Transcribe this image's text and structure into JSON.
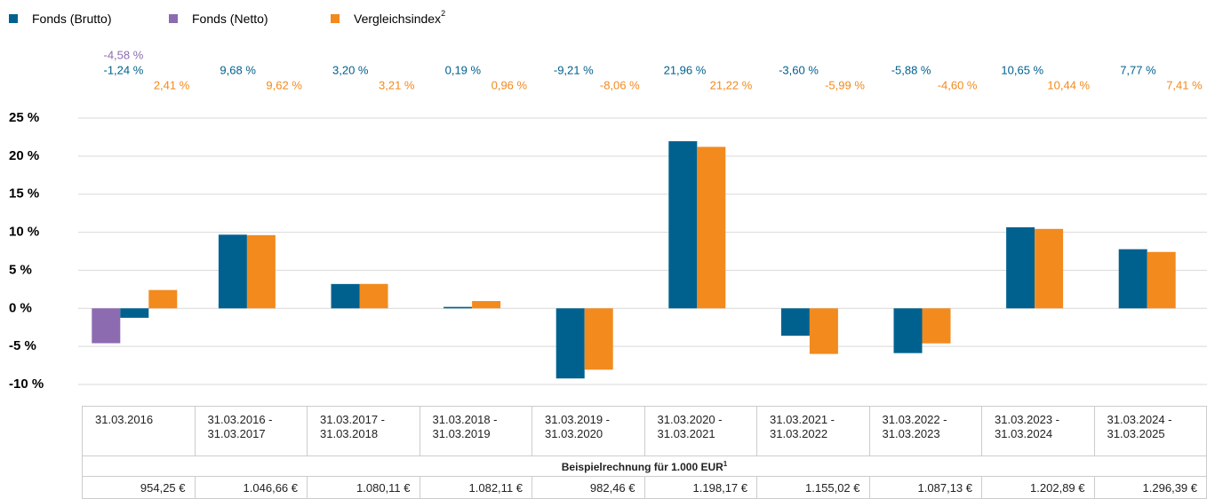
{
  "chart_data": {
    "type": "bar",
    "categories": [
      "31.03.2016",
      "31.03.2016 - 31.03.2017",
      "31.03.2017 - 31.03.2018",
      "31.03.2018 - 31.03.2019",
      "31.03.2019 - 31.03.2020",
      "31.03.2020 - 31.03.2021",
      "31.03.2021 - 31.03.2022",
      "31.03.2022 - 31.03.2023",
      "31.03.2023 - 31.03.2024",
      "31.03.2024 - 31.03.2025"
    ],
    "series": [
      {
        "name": "Fonds (Brutto)",
        "color": "#00618f",
        "values": [
          -1.24,
          9.68,
          3.2,
          0.19,
          -9.21,
          21.96,
          -3.6,
          -5.88,
          10.65,
          7.77
        ],
        "value_labels": [
          "-1,24 %",
          "9,68 %",
          "3,20 %",
          "0,19 %",
          "-9,21 %",
          "21,96 %",
          "-3,60 %",
          "-5,88 %",
          "10,65 %",
          "7,77 %"
        ]
      },
      {
        "name": "Fonds (Netto)",
        "color": "#8c6bb1",
        "values": [
          -4.58,
          null,
          null,
          null,
          null,
          null,
          null,
          null,
          null,
          null
        ],
        "value_labels": [
          "-4,58 %",
          null,
          null,
          null,
          null,
          null,
          null,
          null,
          null,
          null
        ]
      },
      {
        "name": "Vergleichsindex",
        "footnote": "2",
        "color": "#f28a1e",
        "values": [
          2.41,
          9.62,
          3.21,
          0.96,
          -8.06,
          21.22,
          -5.99,
          -4.6,
          10.44,
          7.41
        ],
        "value_labels": [
          "2,41 %",
          "9,62 %",
          "3,21 %",
          "0,96 %",
          "-8,06 %",
          "21,22 %",
          "-5,99 %",
          "-4,60 %",
          "10,44 %",
          "7,41 %"
        ]
      }
    ],
    "ylim": [
      -10,
      25
    ],
    "yticks": [
      {
        "value": -10,
        "label": "-10 %"
      },
      {
        "value": -5,
        "label": "-5 %"
      },
      {
        "value": 0,
        "label": "0 %"
      },
      {
        "value": 5,
        "label": "5 %"
      },
      {
        "value": 10,
        "label": "10 %"
      },
      {
        "value": 15,
        "label": "15 %"
      },
      {
        "value": 20,
        "label": "20 %"
      },
      {
        "value": 25,
        "label": "25 %"
      }
    ],
    "grid": true
  },
  "table": {
    "caption": "Beispielrechnung für 1.000 EUR",
    "footnote": "1",
    "values": [
      "954,25 €",
      "1.046,66 €",
      "1.080,11 €",
      "1.082,11 €",
      "982,46 €",
      "1.198,17 €",
      "1.155,02 €",
      "1.087,13 €",
      "1.202,89 €",
      "1.296,39 €"
    ]
  }
}
